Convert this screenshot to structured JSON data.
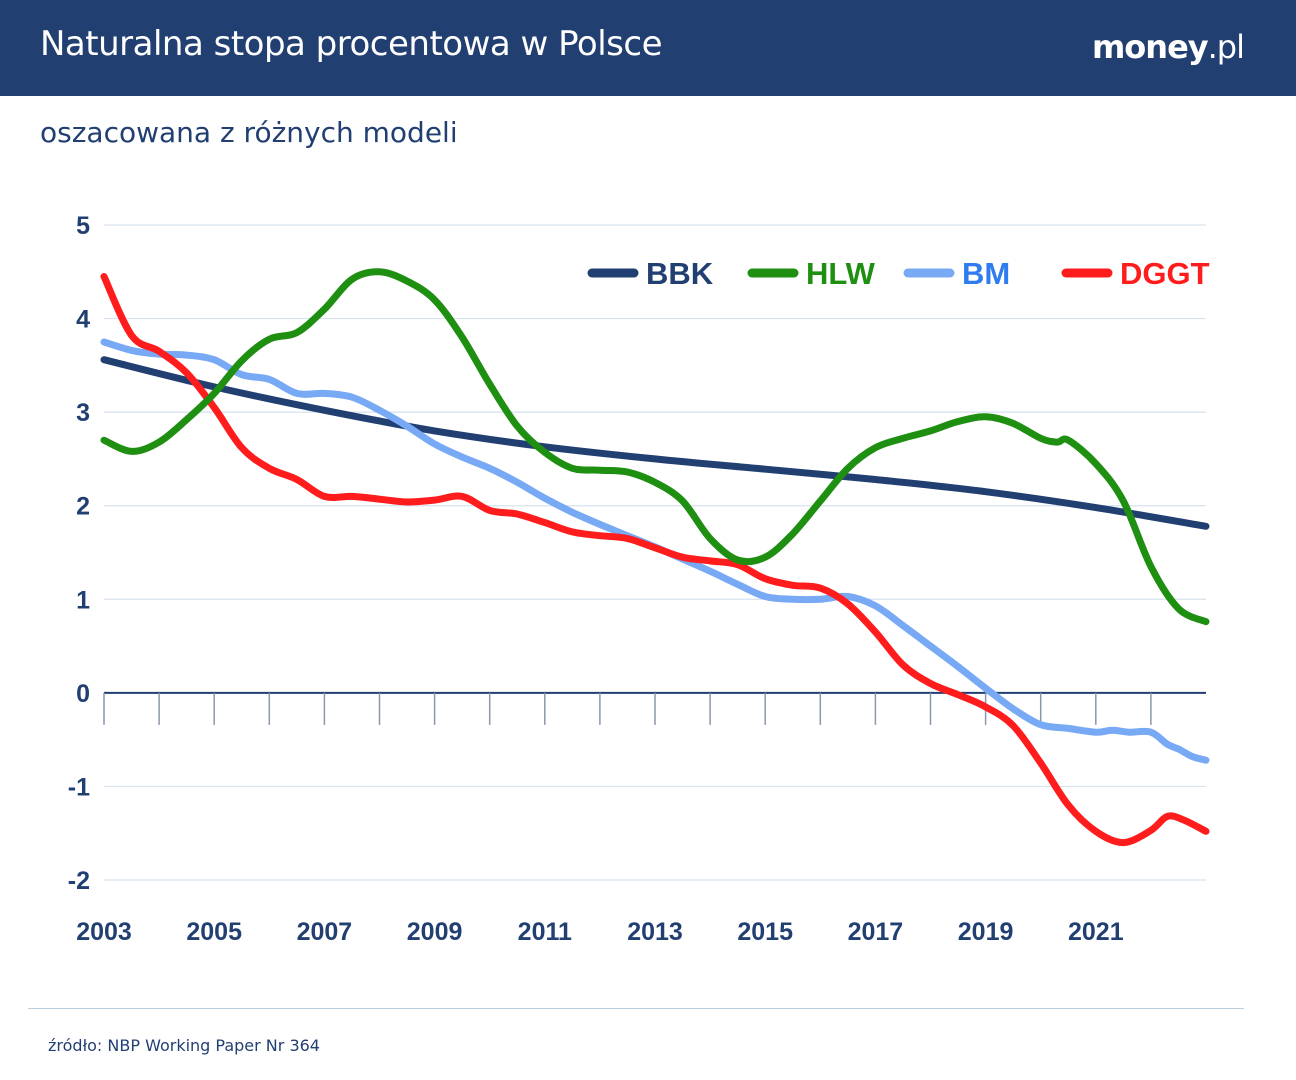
{
  "header": {
    "title": "Naturalna stopa procentowa w Polsce",
    "brand_main": "money",
    "brand_suffix": ".pl"
  },
  "subtitle": "oszacowana z różnych modeli",
  "source": "źródło: NBP Working Paper Nr 364",
  "colors": {
    "header_bg": "#223f72",
    "text": "#223f72",
    "grid": "#d6e2ef",
    "zero_axis": "#223f72"
  },
  "chart_data": {
    "type": "line",
    "xlim": [
      2003,
      2023
    ],
    "ylim": [
      -2,
      5
    ],
    "yticks": [
      5,
      4,
      3,
      2,
      1,
      0,
      -1,
      -2
    ],
    "xtick_labels": [
      "2003",
      "2005",
      "2007",
      "2009",
      "2011",
      "2013",
      "2015",
      "2017",
      "2019",
      "2021"
    ],
    "xtick_values": [
      2003,
      2005,
      2007,
      2009,
      2011,
      2013,
      2015,
      2017,
      2019,
      2021
    ],
    "minor_xticks": [
      2003,
      2004,
      2005,
      2006,
      2007,
      2008,
      2009,
      2010,
      2011,
      2012,
      2013,
      2014,
      2015,
      2016,
      2017,
      2018,
      2019,
      2020,
      2021,
      2022
    ],
    "grid": true,
    "legend_position": "top-right",
    "series": [
      {
        "name": "BBK",
        "color": "#223f72",
        "x": [
          2003.0,
          2005.0,
          2007.0,
          2009.0,
          2011.0,
          2013.0,
          2015.0,
          2017.0,
          2019.0,
          2021.0,
          2023.0
        ],
        "y": [
          3.56,
          3.27,
          3.02,
          2.8,
          2.63,
          2.5,
          2.39,
          2.28,
          2.15,
          1.98,
          1.78
        ]
      },
      {
        "name": "HLW",
        "color": "#1f8f12",
        "x": [
          2003.0,
          2003.5,
          2004.0,
          2004.5,
          2005.0,
          2005.5,
          2006.0,
          2006.5,
          2007.0,
          2007.5,
          2008.0,
          2008.5,
          2009.0,
          2009.5,
          2010.0,
          2010.5,
          2011.0,
          2011.5,
          2012.0,
          2012.5,
          2013.0,
          2013.5,
          2014.0,
          2014.5,
          2015.0,
          2015.5,
          2016.0,
          2016.5,
          2017.0,
          2017.5,
          2018.0,
          2018.5,
          2019.0,
          2019.5,
          2020.0,
          2020.3,
          2020.5,
          2021.0,
          2021.5,
          2022.0,
          2022.5,
          2023.0
        ],
        "y": [
          2.7,
          2.58,
          2.68,
          2.92,
          3.2,
          3.55,
          3.78,
          3.85,
          4.1,
          4.42,
          4.5,
          4.4,
          4.2,
          3.8,
          3.3,
          2.85,
          2.57,
          2.4,
          2.38,
          2.36,
          2.25,
          2.05,
          1.65,
          1.42,
          1.45,
          1.7,
          2.05,
          2.4,
          2.62,
          2.72,
          2.8,
          2.9,
          2.95,
          2.88,
          2.72,
          2.68,
          2.7,
          2.45,
          2.05,
          1.35,
          0.9,
          0.76
        ]
      },
      {
        "name": "BM",
        "color": "#78a9f5",
        "x": [
          2003.0,
          2003.5,
          2004.0,
          2004.5,
          2005.0,
          2005.5,
          2006.0,
          2006.5,
          2007.0,
          2007.5,
          2008.0,
          2008.5,
          2009.0,
          2009.5,
          2010.0,
          2010.5,
          2011.0,
          2011.5,
          2012.0,
          2012.5,
          2013.0,
          2013.5,
          2014.0,
          2014.5,
          2015.0,
          2015.5,
          2016.0,
          2016.5,
          2017.0,
          2017.5,
          2018.0,
          2018.5,
          2019.0,
          2019.5,
          2020.0,
          2020.5,
          2021.0,
          2021.3,
          2021.6,
          2022.0,
          2022.3,
          2022.5,
          2022.75,
          2023.0
        ],
        "y": [
          3.75,
          3.66,
          3.62,
          3.61,
          3.56,
          3.4,
          3.35,
          3.2,
          3.2,
          3.16,
          3.02,
          2.85,
          2.66,
          2.52,
          2.4,
          2.25,
          2.08,
          1.93,
          1.8,
          1.68,
          1.56,
          1.43,
          1.3,
          1.16,
          1.03,
          1.0,
          1.0,
          1.03,
          0.93,
          0.72,
          0.5,
          0.28,
          0.05,
          -0.17,
          -0.34,
          -0.38,
          -0.42,
          -0.4,
          -0.42,
          -0.42,
          -0.55,
          -0.6,
          -0.68,
          -0.72
        ]
      },
      {
        "name": "DGGT",
        "color": "#ff1c1c",
        "x": [
          2003.0,
          2003.5,
          2004.0,
          2004.5,
          2005.0,
          2005.5,
          2006.0,
          2006.5,
          2007.0,
          2007.5,
          2008.0,
          2008.5,
          2009.0,
          2009.5,
          2010.0,
          2010.5,
          2011.0,
          2011.5,
          2012.0,
          2012.5,
          2013.0,
          2013.5,
          2014.0,
          2014.5,
          2015.0,
          2015.5,
          2016.0,
          2016.5,
          2017.0,
          2017.5,
          2018.0,
          2018.5,
          2019.0,
          2019.5,
          2020.0,
          2020.5,
          2021.0,
          2021.5,
          2022.0,
          2022.3,
          2022.6,
          2023.0
        ],
        "y": [
          4.45,
          3.82,
          3.65,
          3.42,
          3.05,
          2.62,
          2.4,
          2.28,
          2.1,
          2.1,
          2.07,
          2.04,
          2.06,
          2.1,
          1.95,
          1.91,
          1.82,
          1.72,
          1.68,
          1.65,
          1.55,
          1.45,
          1.41,
          1.37,
          1.22,
          1.15,
          1.12,
          0.95,
          0.65,
          0.3,
          0.1,
          -0.02,
          -0.15,
          -0.35,
          -0.75,
          -1.2,
          -1.48,
          -1.6,
          -1.47,
          -1.32,
          -1.36,
          -1.48
        ]
      }
    ]
  }
}
